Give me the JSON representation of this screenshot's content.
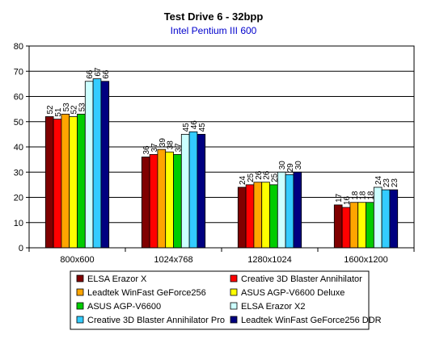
{
  "chart_data": {
    "type": "bar",
    "title": "Test Drive 6 - 32bpp",
    "subtitle": "Intel Pentium III 600",
    "xlabel": "",
    "ylabel": "",
    "ylim": [
      0,
      80
    ],
    "yticks": [
      0,
      10,
      20,
      30,
      40,
      50,
      60,
      70,
      80
    ],
    "grid": true,
    "legend_position": "bottom",
    "categories": [
      "800x600",
      "1024x768",
      "1280x1024",
      "1600x1200"
    ],
    "series": [
      {
        "name": "ELSA Erazor X",
        "color": "#800000",
        "values": [
          52,
          36,
          24,
          17
        ]
      },
      {
        "name": "Creative 3D Blaster Annihilator",
        "color": "#ff0000",
        "values": [
          51,
          37,
          25,
          16
        ]
      },
      {
        "name": "Leadtek WinFast GeForce256",
        "color": "#ffa500",
        "values": [
          53,
          39,
          26,
          18
        ]
      },
      {
        "name": "ASUS AGP-V6600 Deluxe",
        "color": "#ffff00",
        "values": [
          52,
          38,
          26,
          18
        ]
      },
      {
        "name": "ASUS AGP-V6600",
        "color": "#00cc00",
        "values": [
          53,
          37,
          25,
          18
        ]
      },
      {
        "name": "ELSA Erazor X2",
        "color": "#ccffff",
        "values": [
          66,
          45,
          30,
          24
        ]
      },
      {
        "name": "Creative 3D Blaster Annihilator Pro",
        "color": "#33ccff",
        "values": [
          67,
          46,
          29,
          23
        ]
      },
      {
        "name": "Leadtek WinFast GeForce256 DDR",
        "color": "#000080",
        "values": [
          66,
          45,
          30,
          23
        ]
      }
    ]
  }
}
